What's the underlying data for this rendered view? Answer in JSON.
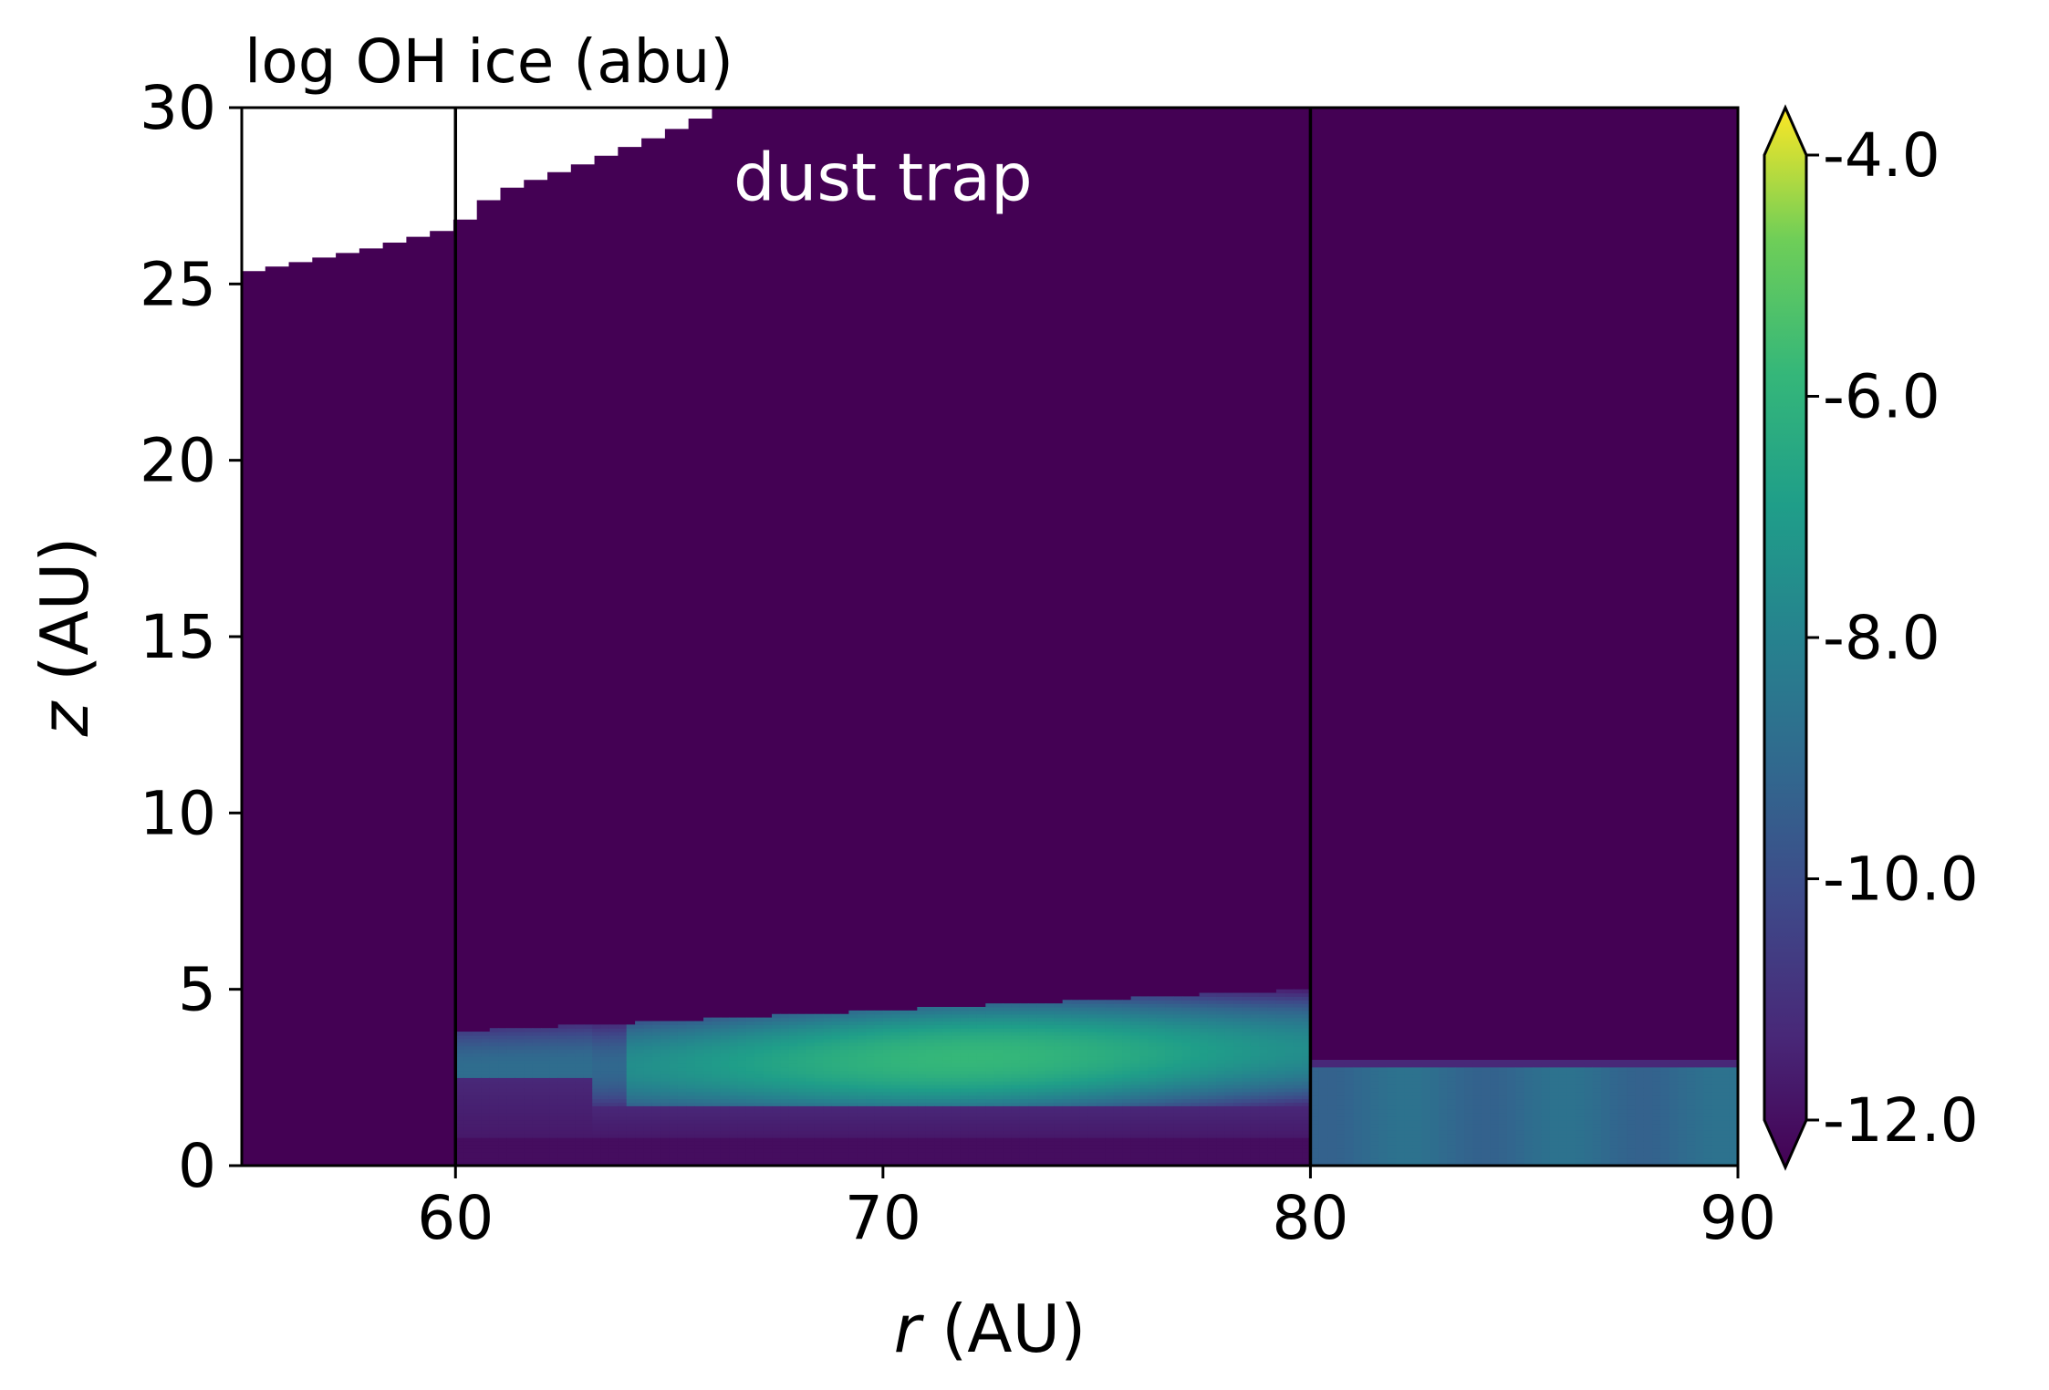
{
  "chart_data": {
    "type": "heatmap",
    "title": "log OH ice (abu)",
    "xlabel_var": "r",
    "xlabel_unit": " (AU)",
    "ylabel_var": "z",
    "ylabel_unit": " (AU)",
    "xlim": [
      55,
      90
    ],
    "ylim": [
      0,
      30
    ],
    "xticks": [
      60,
      70,
      80,
      90
    ],
    "xtick_labels": [
      "60",
      "70",
      "80",
      "90"
    ],
    "yticks": [
      0,
      5,
      10,
      15,
      20,
      25,
      30
    ],
    "ytick_labels": [
      "0",
      "5",
      "10",
      "15",
      "20",
      "25",
      "30"
    ],
    "colorbar": {
      "colormap": "viridis",
      "range": [
        -12.0,
        -4.0
      ],
      "extend": "both",
      "ticks": [
        -12.0,
        -10.0,
        -8.0,
        -6.0,
        -4.0
      ],
      "tick_labels": [
        "-12.0",
        "-10.0",
        "-8.0",
        "-6.0",
        "-4.0"
      ]
    },
    "vertical_lines_x": [
      60,
      80
    ],
    "annotation": {
      "text": "dust trap",
      "x": 70,
      "y": 28
    },
    "background_value": -12.0,
    "masked_upper_boundary": [
      {
        "r": 55.0,
        "z": 25.3
      },
      {
        "r": 58.0,
        "z": 26.0
      },
      {
        "r": 60.0,
        "z": 26.6
      },
      {
        "r": 61.0,
        "z": 27.6
      },
      {
        "r": 63.0,
        "z": 28.4
      },
      {
        "r": 65.0,
        "z": 29.3
      },
      {
        "r": 66.3,
        "z": 30.0
      }
    ],
    "features": [
      {
        "name": "trap band",
        "r_range": [
          60,
          80
        ],
        "z_bottom": 1.7,
        "z_top": 4.0,
        "peak_z_at_r60": 2.7,
        "peak_z_at_r80": 3.3,
        "peak_value": -6.0
      },
      {
        "name": "outer midplane layer",
        "r_range": [
          80,
          90
        ],
        "z_bottom": 0.0,
        "z_top": 2.8,
        "value": -8.8
      }
    ]
  }
}
